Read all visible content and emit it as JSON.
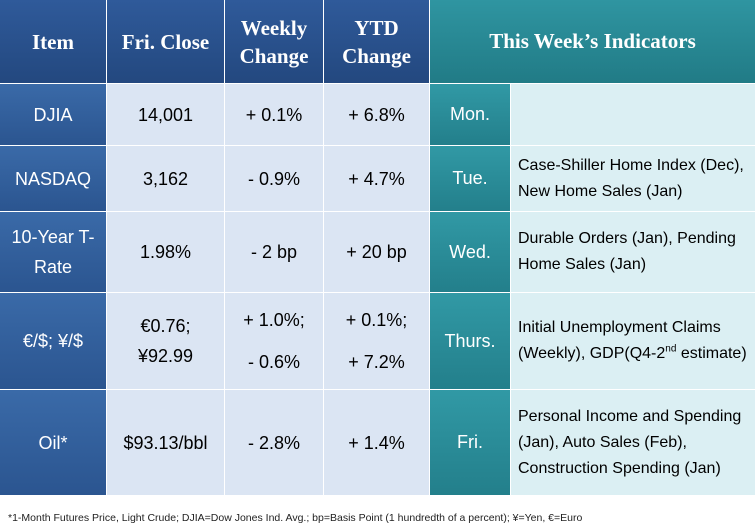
{
  "header": {
    "item": "Item",
    "close": "Fri. Close",
    "weekly_1": "Weekly",
    "weekly_2": "Change",
    "ytd_1": "YTD",
    "ytd_2": "Change",
    "indicators": "This Week’s Indicators"
  },
  "rows": [
    {
      "item": "DJIA",
      "close": "14,001",
      "weekly": "+ 0.1%",
      "ytd": "+ 6.8%",
      "day": "Mon.",
      "indicator": ""
    },
    {
      "item": "NASDAQ",
      "close": "3,162",
      "weekly": "- 0.9%",
      "ytd": "+ 4.7%",
      "day": "Tue.",
      "indicator": "Case-Shiller Home Index (Dec), New Home Sales (Jan)"
    },
    {
      "item_1": "10-Year T-",
      "item_2": "Rate",
      "close": "1.98%",
      "weekly": "- 2 bp",
      "ytd": "+ 20 bp",
      "day": "Wed.",
      "indicator": "Durable Orders (Jan), Pending Home Sales (Jan)"
    },
    {
      "item": "€/$; ¥/$",
      "close_1": "€0.76;",
      "close_2": "¥92.99",
      "weekly_1": "+ 1.0%;",
      "weekly_2": "- 0.6%",
      "ytd_1": "+ 0.1%;",
      "ytd_2": "+ 7.2%",
      "day": "Thurs.",
      "indicator_a": "Initial Unemployment Claims (Weekly), GDP(Q4-2",
      "indicator_sup": "nd",
      "indicator_b": " estimate)"
    },
    {
      "item": "Oil*",
      "close": "$93.13/bbl",
      "weekly": "- 2.8%",
      "ytd": "+ 1.4%",
      "day": "Fri.",
      "indicator": "Personal Income and Spending (Jan), Auto Sales (Feb), Construction Spending (Jan)"
    }
  ],
  "footnote": "*1-Month Futures Price, Light Crude; DJIA=Dow Jones Ind. Avg.; bp=Basis Point (1 hundredth of a percent); ¥=Yen, €=Euro",
  "colors": {
    "header_blue": "#2a5290",
    "header_teal": "#2a8a96",
    "value_fill": "#dbe5f3",
    "indicator_fill": "#dbeff3"
  }
}
